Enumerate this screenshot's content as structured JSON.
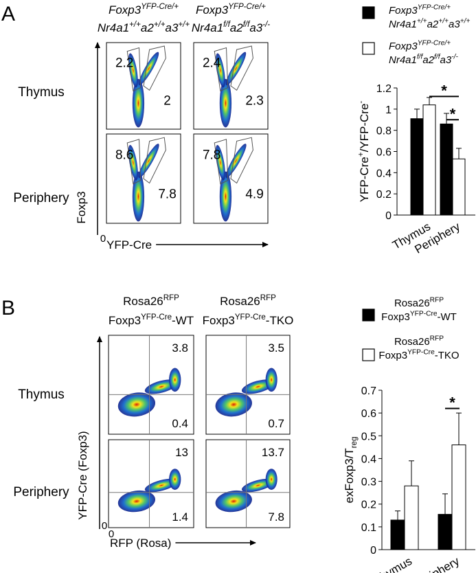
{
  "flow_panels": [
    {
      "label": "A",
      "italic": true,
      "columns": [
        [
          [
            [
              "Foxp3",
              "base"
            ],
            [
              "YFP-Cre/+",
              "sup"
            ]
          ],
          [
            [
              "Nr4a1",
              "base"
            ],
            [
              "+/+",
              "sup"
            ],
            [
              "a2",
              "base"
            ],
            [
              "+/+",
              "sup"
            ],
            [
              "a3",
              "base"
            ],
            [
              "+/+",
              "sup"
            ]
          ]
        ],
        [
          [
            [
              "Foxp3",
              "base"
            ],
            [
              "YFP-Cre/+",
              "sup"
            ]
          ],
          [
            [
              "Nr4a1",
              "base"
            ],
            [
              "f/f",
              "sup"
            ],
            [
              "a2",
              "base"
            ],
            [
              "f/f",
              "sup"
            ],
            [
              "a3",
              "base"
            ],
            [
              "-/-",
              "sup"
            ]
          ]
        ]
      ],
      "rows": [
        "Thymus",
        "Periphery"
      ],
      "gates": [
        [
          [
            2.2,
            2
          ],
          [
            2.4,
            2.3
          ]
        ],
        [
          [
            8.6,
            7.8
          ],
          [
            7.8,
            4.9
          ]
        ]
      ],
      "y_axis": "Foxp3",
      "x_axis": "YFP-Cre",
      "origin": [
        "0"
      ]
    },
    {
      "label": "B",
      "italic": false,
      "columns": [
        [
          [
            [
              "Rosa26",
              "base"
            ],
            [
              "RFP",
              "sup"
            ]
          ],
          [
            [
              "Foxp3",
              "base"
            ],
            [
              "YFP-Cre",
              "sup"
            ],
            [
              "-WT",
              "base"
            ]
          ]
        ],
        [
          [
            [
              "Rosa26",
              "base"
            ],
            [
              "RFP",
              "sup"
            ]
          ],
          [
            [
              "Foxp3",
              "base"
            ],
            [
              "YFP-Cre",
              "sup"
            ],
            [
              "-TKO",
              "base"
            ]
          ]
        ]
      ],
      "rows": [
        "Thymus",
        "Periphery"
      ],
      "gates": [
        [
          [
            3.8,
            0.4
          ],
          [
            3.5,
            0.7
          ]
        ],
        [
          [
            13,
            1.4
          ],
          [
            13.7,
            7.8
          ]
        ]
      ],
      "y_axis": "YFP-Cre (Foxp3)",
      "x_axis": "RFP (Rosa)",
      "origin": [
        "0",
        "0"
      ]
    }
  ],
  "chart_data": [
    {
      "type": "bar",
      "italic": true,
      "categories": [
        "Thymus",
        "Periphery"
      ],
      "ylabel": [
        [
          "YFP-Cre",
          "base"
        ],
        [
          "+",
          "sup"
        ],
        [
          "/YFP-Cre",
          "base"
        ],
        [
          "-",
          "sup"
        ]
      ],
      "ylim": [
        0,
        1.2
      ],
      "yticks": [
        0,
        0.2,
        0.4,
        0.6,
        0.8,
        1,
        1.2
      ],
      "series": [
        {
          "name": [
            [
              [
                "Foxp3",
                "base"
              ],
              [
                "YFP-Cre/+",
                "sup"
              ]
            ],
            [
              [
                "Nr4a1",
                "base"
              ],
              [
                "+/+",
                "sup"
              ],
              [
                "a2",
                "base"
              ],
              [
                "+/+",
                "sup"
              ],
              [
                "a3",
                "base"
              ],
              [
                "+/+",
                "sup"
              ]
            ]
          ],
          "color": "#000000",
          "values": [
            0.91,
            0.86
          ],
          "errors": [
            0.09,
            0.1
          ]
        },
        {
          "name": [
            [
              [
                "Foxp3",
                "base"
              ],
              [
                "YFP-Cre/+",
                "sup"
              ]
            ],
            [
              [
                "Nr4a1",
                "base"
              ],
              [
                "f/f",
                "sup"
              ],
              [
                "a2",
                "base"
              ],
              [
                "f/f",
                "sup"
              ],
              [
                "a3",
                "base"
              ],
              [
                "-/-",
                "sup"
              ]
            ]
          ],
          "color": "#ffffff",
          "values": [
            1.04,
            0.53
          ],
          "errors": [
            0.07,
            0.1
          ]
        }
      ],
      "annotations": [
        "*",
        "*"
      ]
    },
    {
      "type": "bar",
      "italic": false,
      "categories": [
        "Thymus",
        "Periphery"
      ],
      "ylabel": [
        [
          "exFoxp3/T",
          "base"
        ],
        [
          "reg",
          "sub"
        ]
      ],
      "ylim": [
        0,
        0.7
      ],
      "yticks": [
        0,
        0.1,
        0.2,
        0.3,
        0.4,
        0.5,
        0.6,
        0.7
      ],
      "series": [
        {
          "name": [
            [
              [
                "Rosa26",
                "base"
              ],
              [
                "RFP",
                "sup"
              ]
            ],
            [
              [
                "Foxp3",
                "base"
              ],
              [
                "YFP-Cre",
                "sup"
              ],
              [
                "-WT",
                "base"
              ]
            ]
          ],
          "color": "#000000",
          "values": [
            0.13,
            0.155
          ],
          "errors": [
            0.04,
            0.09
          ]
        },
        {
          "name": [
            [
              [
                "Rosa26",
                "base"
              ],
              [
                "RFP",
                "sup"
              ]
            ],
            [
              [
                "Foxp3",
                "base"
              ],
              [
                "YFP-Cre",
                "sup"
              ],
              [
                "-TKO",
                "base"
              ]
            ]
          ],
          "color": "#ffffff",
          "values": [
            0.28,
            0.46
          ],
          "errors": [
            0.11,
            0.14
          ]
        }
      ],
      "annotations": [
        "*"
      ]
    }
  ]
}
